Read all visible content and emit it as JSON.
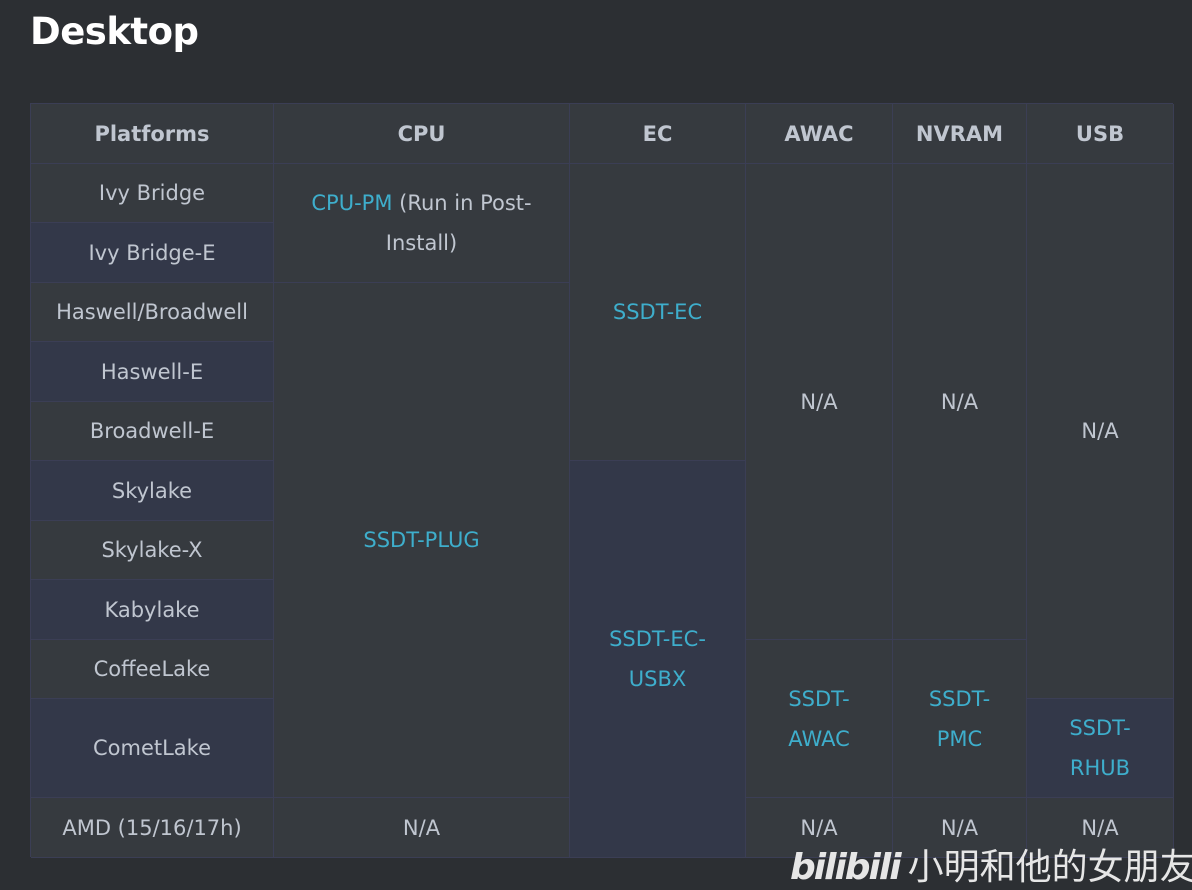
{
  "title": "Desktop",
  "headers": [
    "Platforms",
    "CPU",
    "EC",
    "AWAC",
    "NVRAM",
    "USB"
  ],
  "platforms": [
    "Ivy Bridge",
    "Ivy Bridge-E",
    "Haswell/Broadwell",
    "Haswell-E",
    "Broadwell-E",
    "Skylake",
    "Skylake-X",
    "Kabylake",
    "CoffeeLake",
    "CometLake",
    "AMD (15/16/17h)"
  ],
  "cpu": {
    "cpu_pm_link": "CPU-PM",
    "cpu_pm_note": "(Run in Post-Install)",
    "plug": "SSDT-PLUG",
    "amd": "N/A"
  },
  "ec": {
    "ec": "SSDT-EC",
    "usbx": "SSDT-EC-USBX"
  },
  "awac": {
    "na": "N/A",
    "ssdt": "SSDT-AWAC",
    "amd": "N/A"
  },
  "nvram": {
    "na": "N/A",
    "ssdt": "SSDT-PMC",
    "amd": "N/A"
  },
  "usb": {
    "na": "N/A",
    "ssdt": "SSDT-RHUB",
    "amd": "N/A"
  },
  "watermark": {
    "logo": "bilibili",
    "user": "小明和他的女朋友"
  },
  "colors": {
    "link": "#3eaecc",
    "text": "#c0c6d0",
    "background": "#2c2f33"
  }
}
